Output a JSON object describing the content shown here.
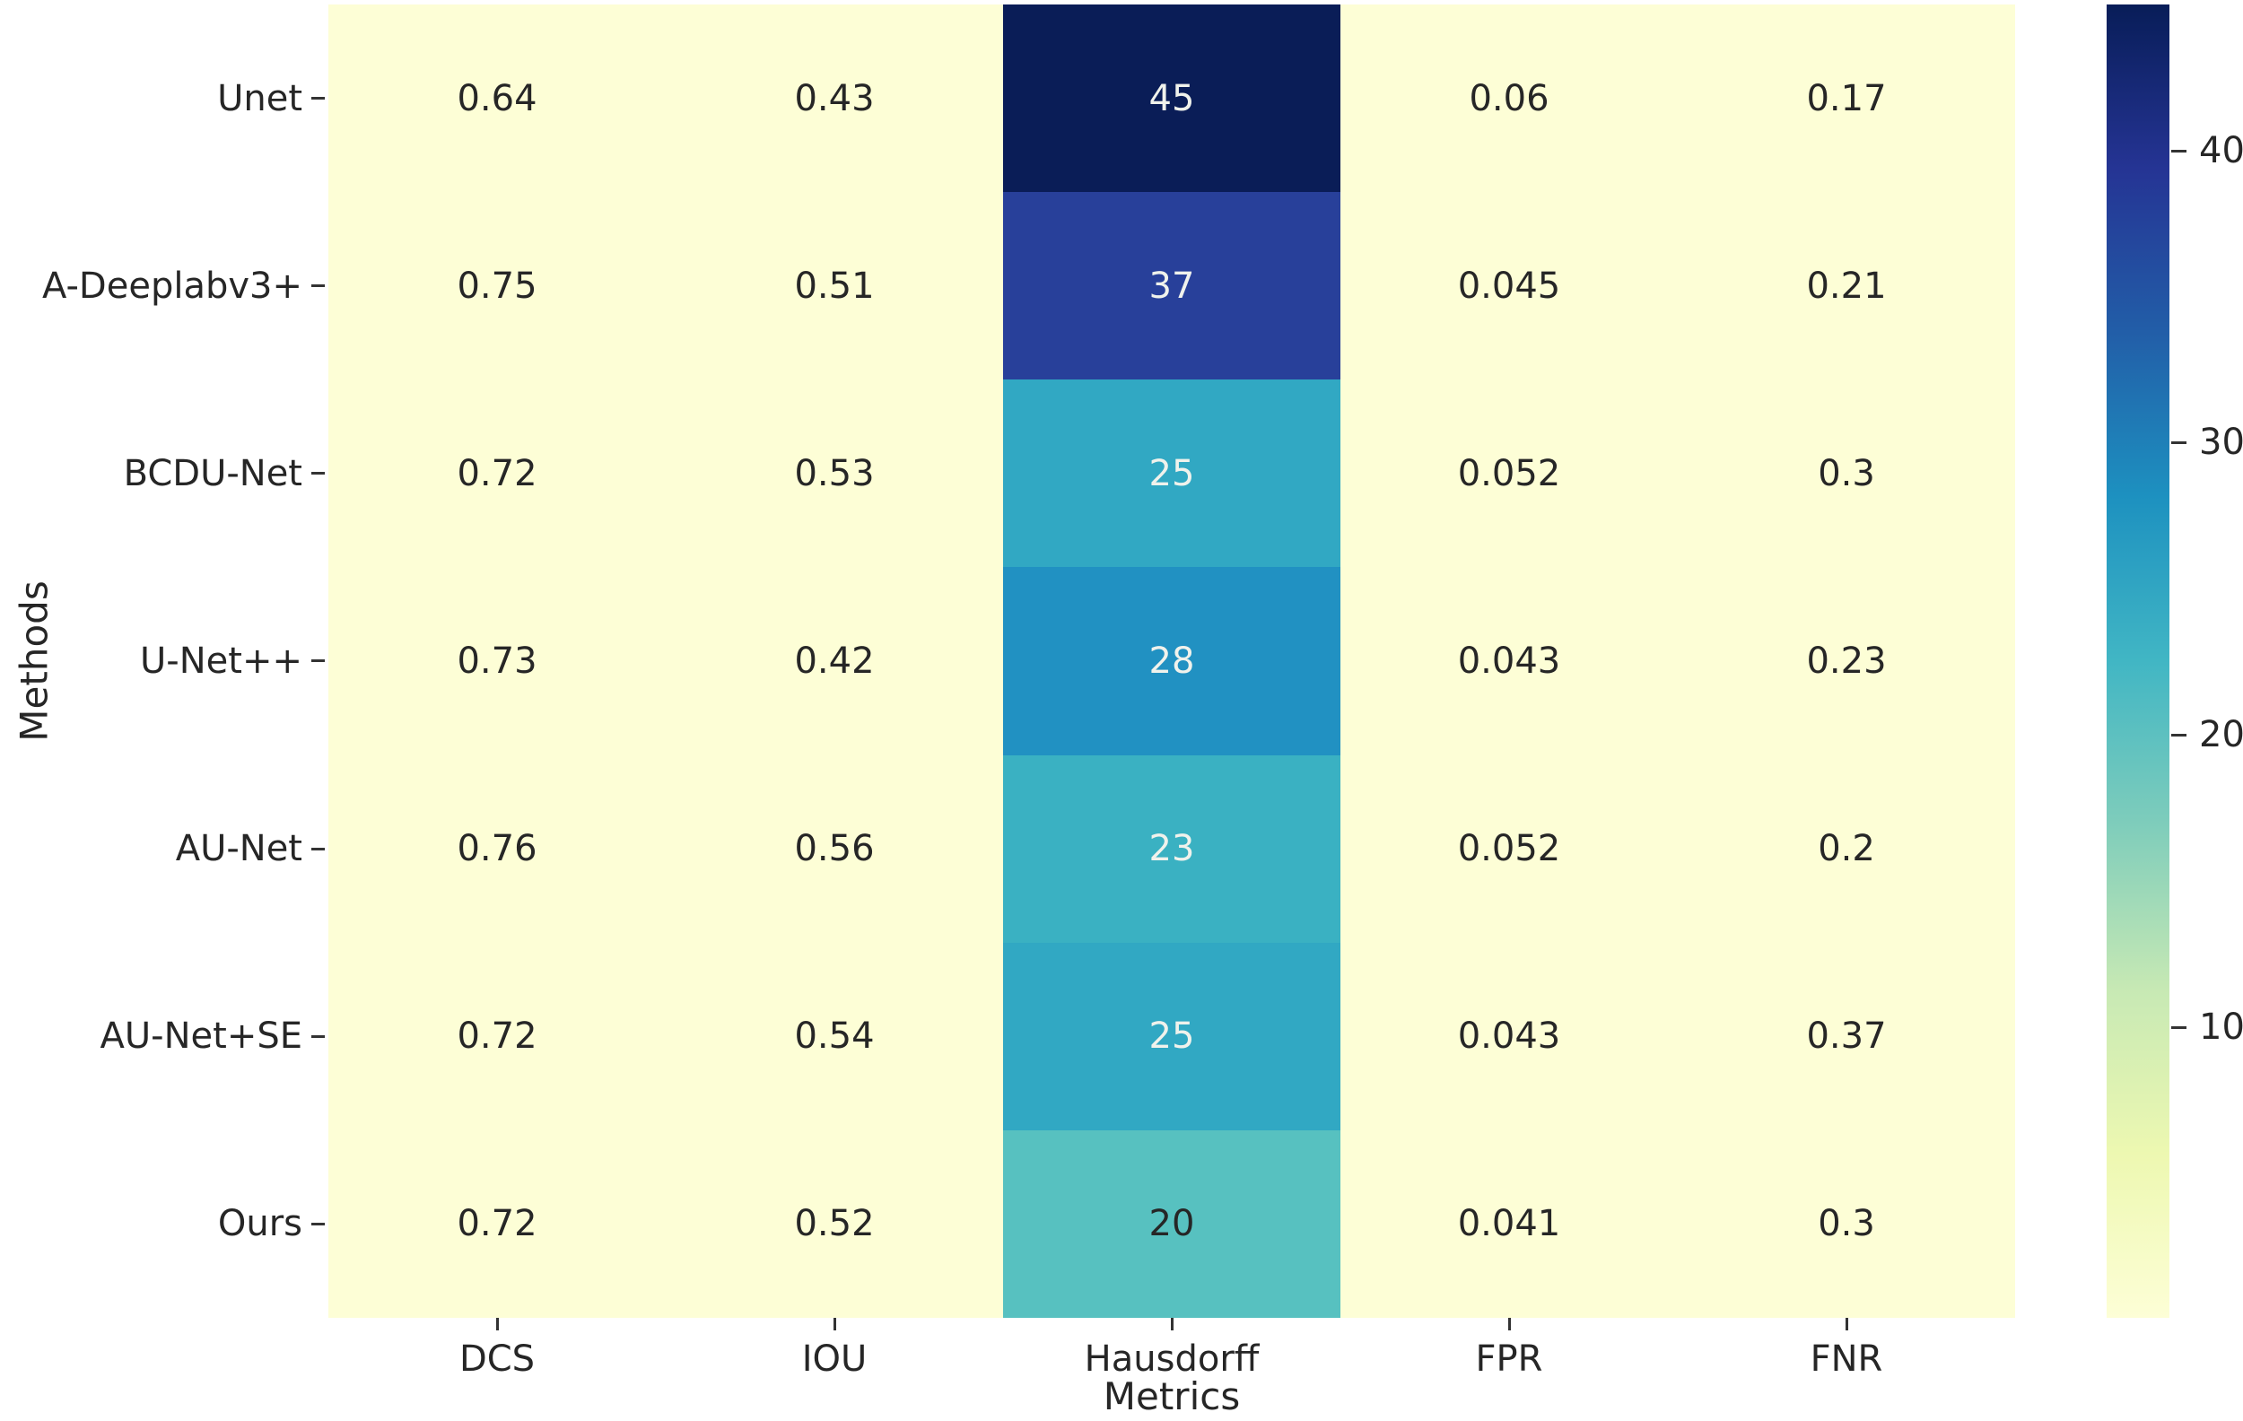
{
  "chart_data": {
    "type": "heatmap",
    "title": "",
    "xlabel": "Metrics",
    "ylabel": "Methods",
    "col_labels": [
      "DCS",
      "IOU",
      "Hausdorff",
      "FPR",
      "FNR"
    ],
    "row_labels": [
      "Unet",
      "A-Deeplabv3+",
      "BCDU-Net",
      "U-Net++",
      "AU-Net",
      "AU-Net+SE",
      "Ours"
    ],
    "values": [
      [
        0.64,
        0.43,
        45,
        0.06,
        0.17
      ],
      [
        0.75,
        0.51,
        37,
        0.045,
        0.21
      ],
      [
        0.72,
        0.53,
        25,
        0.052,
        0.3
      ],
      [
        0.73,
        0.42,
        28,
        0.043,
        0.23
      ],
      [
        0.76,
        0.56,
        23,
        0.052,
        0.2
      ],
      [
        0.72,
        0.54,
        25,
        0.043,
        0.37
      ],
      [
        0.72,
        0.52,
        20,
        0.041,
        0.3
      ]
    ],
    "cell_text": [
      [
        "0.64",
        "0.43",
        "45",
        "0.06",
        "0.17"
      ],
      [
        "0.75",
        "0.51",
        "37",
        "0.045",
        "0.21"
      ],
      [
        "0.72",
        "0.53",
        "25",
        "0.052",
        "0.3"
      ],
      [
        "0.73",
        "0.42",
        "28",
        "0.043",
        "0.23"
      ],
      [
        "0.76",
        "0.56",
        "23",
        "0.052",
        "0.2"
      ],
      [
        "0.72",
        "0.54",
        "25",
        "0.043",
        "0.37"
      ],
      [
        "0.72",
        "0.52",
        "20",
        "0.041",
        "0.3"
      ]
    ],
    "cell_bg": [
      [
        "#fdfed6",
        "#fdfed6",
        "#0a1d57",
        "#fdfed6",
        "#fdfed6"
      ],
      [
        "#fdfed6",
        "#fdfed6",
        "#28409a",
        "#fdfed6",
        "#fdfed6"
      ],
      [
        "#fdfed6",
        "#fdfed6",
        "#31a8c3",
        "#fdfed6",
        "#fdfed6"
      ],
      [
        "#fdfed6",
        "#fdfed6",
        "#2191c2",
        "#fdfed6",
        "#fdfed6"
      ],
      [
        "#fdfed6",
        "#fdfed6",
        "#3ab1c2",
        "#fdfed6",
        "#fdfed6"
      ],
      [
        "#fdfed6",
        "#fdfed6",
        "#31a8c3",
        "#fdfed6",
        "#fdfed6"
      ],
      [
        "#fdfed6",
        "#fdfed6",
        "#57c1c0",
        "#fdfed6",
        "#fdfed6"
      ]
    ],
    "cell_fg": [
      [
        "#262626",
        "#262626",
        "#f0f2ec",
        "#262626",
        "#262626"
      ],
      [
        "#262626",
        "#262626",
        "#f0f2ec",
        "#262626",
        "#262626"
      ],
      [
        "#262626",
        "#262626",
        "#f0f2ec",
        "#262626",
        "#262626"
      ],
      [
        "#262626",
        "#262626",
        "#f0f2ec",
        "#262626",
        "#262626"
      ],
      [
        "#262626",
        "#262626",
        "#f0f2ec",
        "#262626",
        "#262626"
      ],
      [
        "#262626",
        "#262626",
        "#f0f2ec",
        "#262626",
        "#262626"
      ],
      [
        "#262626",
        "#262626",
        "#262626",
        "#262626",
        "#262626"
      ]
    ],
    "colormap": "YlGnBu",
    "vmin": 0.041,
    "vmax": 45,
    "grid": false,
    "legend_position": "right-colorbar",
    "colorbar_ticks": [
      "40",
      "30",
      "20",
      "10"
    ],
    "colorbar_tick_values": [
      40,
      30,
      20,
      10
    ],
    "colorbar_gradient": [
      {
        "pos": 0.0,
        "color": "#fdfed6"
      },
      {
        "pos": 0.125,
        "color": "#edf8b1"
      },
      {
        "pos": 0.25,
        "color": "#c7e9b4"
      },
      {
        "pos": 0.375,
        "color": "#7fcdbb"
      },
      {
        "pos": 0.5,
        "color": "#41b6c4"
      },
      {
        "pos": 0.625,
        "color": "#1d91c0"
      },
      {
        "pos": 0.75,
        "color": "#225ea8"
      },
      {
        "pos": 0.875,
        "color": "#253494"
      },
      {
        "pos": 1.0,
        "color": "#081d58"
      }
    ],
    "colors": {
      "background": "#ffffff",
      "light_cell": "#fdfed6",
      "dark_text": "#262626",
      "light_text": "#f0f2ec",
      "tick_mark": "#333333"
    }
  }
}
